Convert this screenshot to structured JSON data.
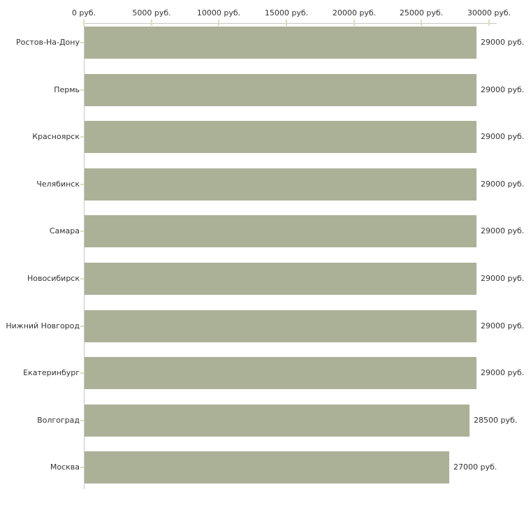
{
  "chart_data": {
    "type": "bar",
    "orientation": "horizontal",
    "title": "",
    "xlabel": "",
    "ylabel": "",
    "xlim": [
      0,
      30000
    ],
    "grid": false,
    "legend_position": "none",
    "x_axis_position": "top",
    "categories": [
      "Ростов-На-Дону",
      "Пермь",
      "Красноярск",
      "Челябинск",
      "Самара",
      "Новосибирск",
      "Нижний Новгород",
      "Екатеринбург",
      "Волгоград",
      "Москва"
    ],
    "values": [
      29000,
      29000,
      29000,
      29000,
      29000,
      29000,
      29000,
      29000,
      28500,
      27000
    ],
    "value_labels": [
      "29000 руб.",
      "29000 руб.",
      "29000 руб.",
      "29000 руб.",
      "29000 руб.",
      "29000 руб.",
      "29000 руб.",
      "29000 руб.",
      "28500 руб.",
      "27000 руб."
    ],
    "x_tick_values": [
      0,
      5000,
      10000,
      15000,
      20000,
      25000,
      30000
    ],
    "x_tick_labels": [
      "0 руб.",
      "5000 руб.",
      "10000 руб.",
      "15000 руб.",
      "20000 руб.",
      "25000 руб.",
      "30000 руб."
    ],
    "colors": {
      "bar": "#abb197",
      "axis_line": "#c6c6c6",
      "tick_mark": "#dcdeb9",
      "text": "#333333",
      "background": "#ffffff"
    }
  }
}
